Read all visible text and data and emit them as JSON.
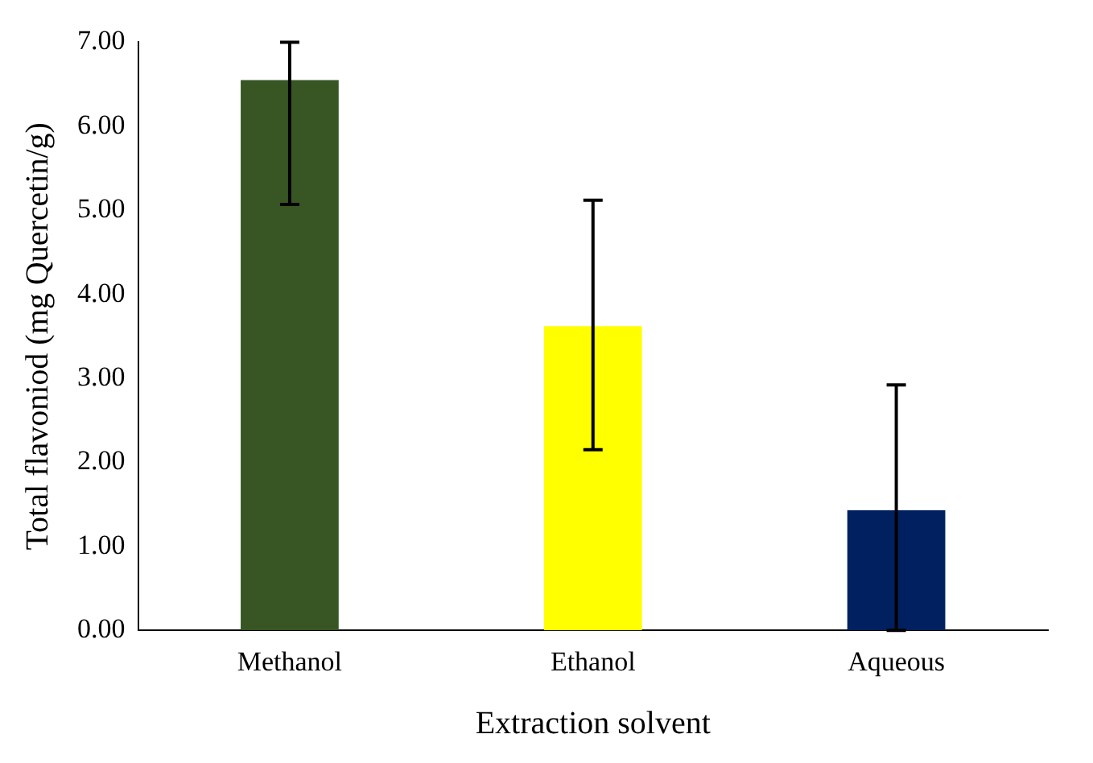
{
  "chart_data": {
    "type": "bar",
    "xlabel": "Extraction solvent",
    "ylabel": "Total flavoniod (mg Quercetin/g)",
    "categories": [
      "Methanol",
      "Ethanol",
      "Aqueous"
    ],
    "values": [
      6.55,
      3.62,
      1.43
    ],
    "colors": [
      "#375623",
      "#ffff00",
      "#002060"
    ],
    "errors": [
      [
        5.07,
        7.0
      ],
      [
        2.15,
        5.12
      ],
      [
        0,
        2.92
      ]
    ],
    "ylim": [
      0,
      7
    ],
    "yticks": [
      {
        "value": 0,
        "label": "0.00"
      },
      {
        "value": 1,
        "label": "1.00"
      },
      {
        "value": 2,
        "label": "2.00"
      },
      {
        "value": 3,
        "label": "3.00"
      },
      {
        "value": 4,
        "label": "4.00"
      },
      {
        "value": 5,
        "label": "5.00"
      },
      {
        "value": 6,
        "label": "6.00"
      },
      {
        "value": 7,
        "label": "7.00"
      }
    ],
    "grid": false,
    "legend": false
  }
}
